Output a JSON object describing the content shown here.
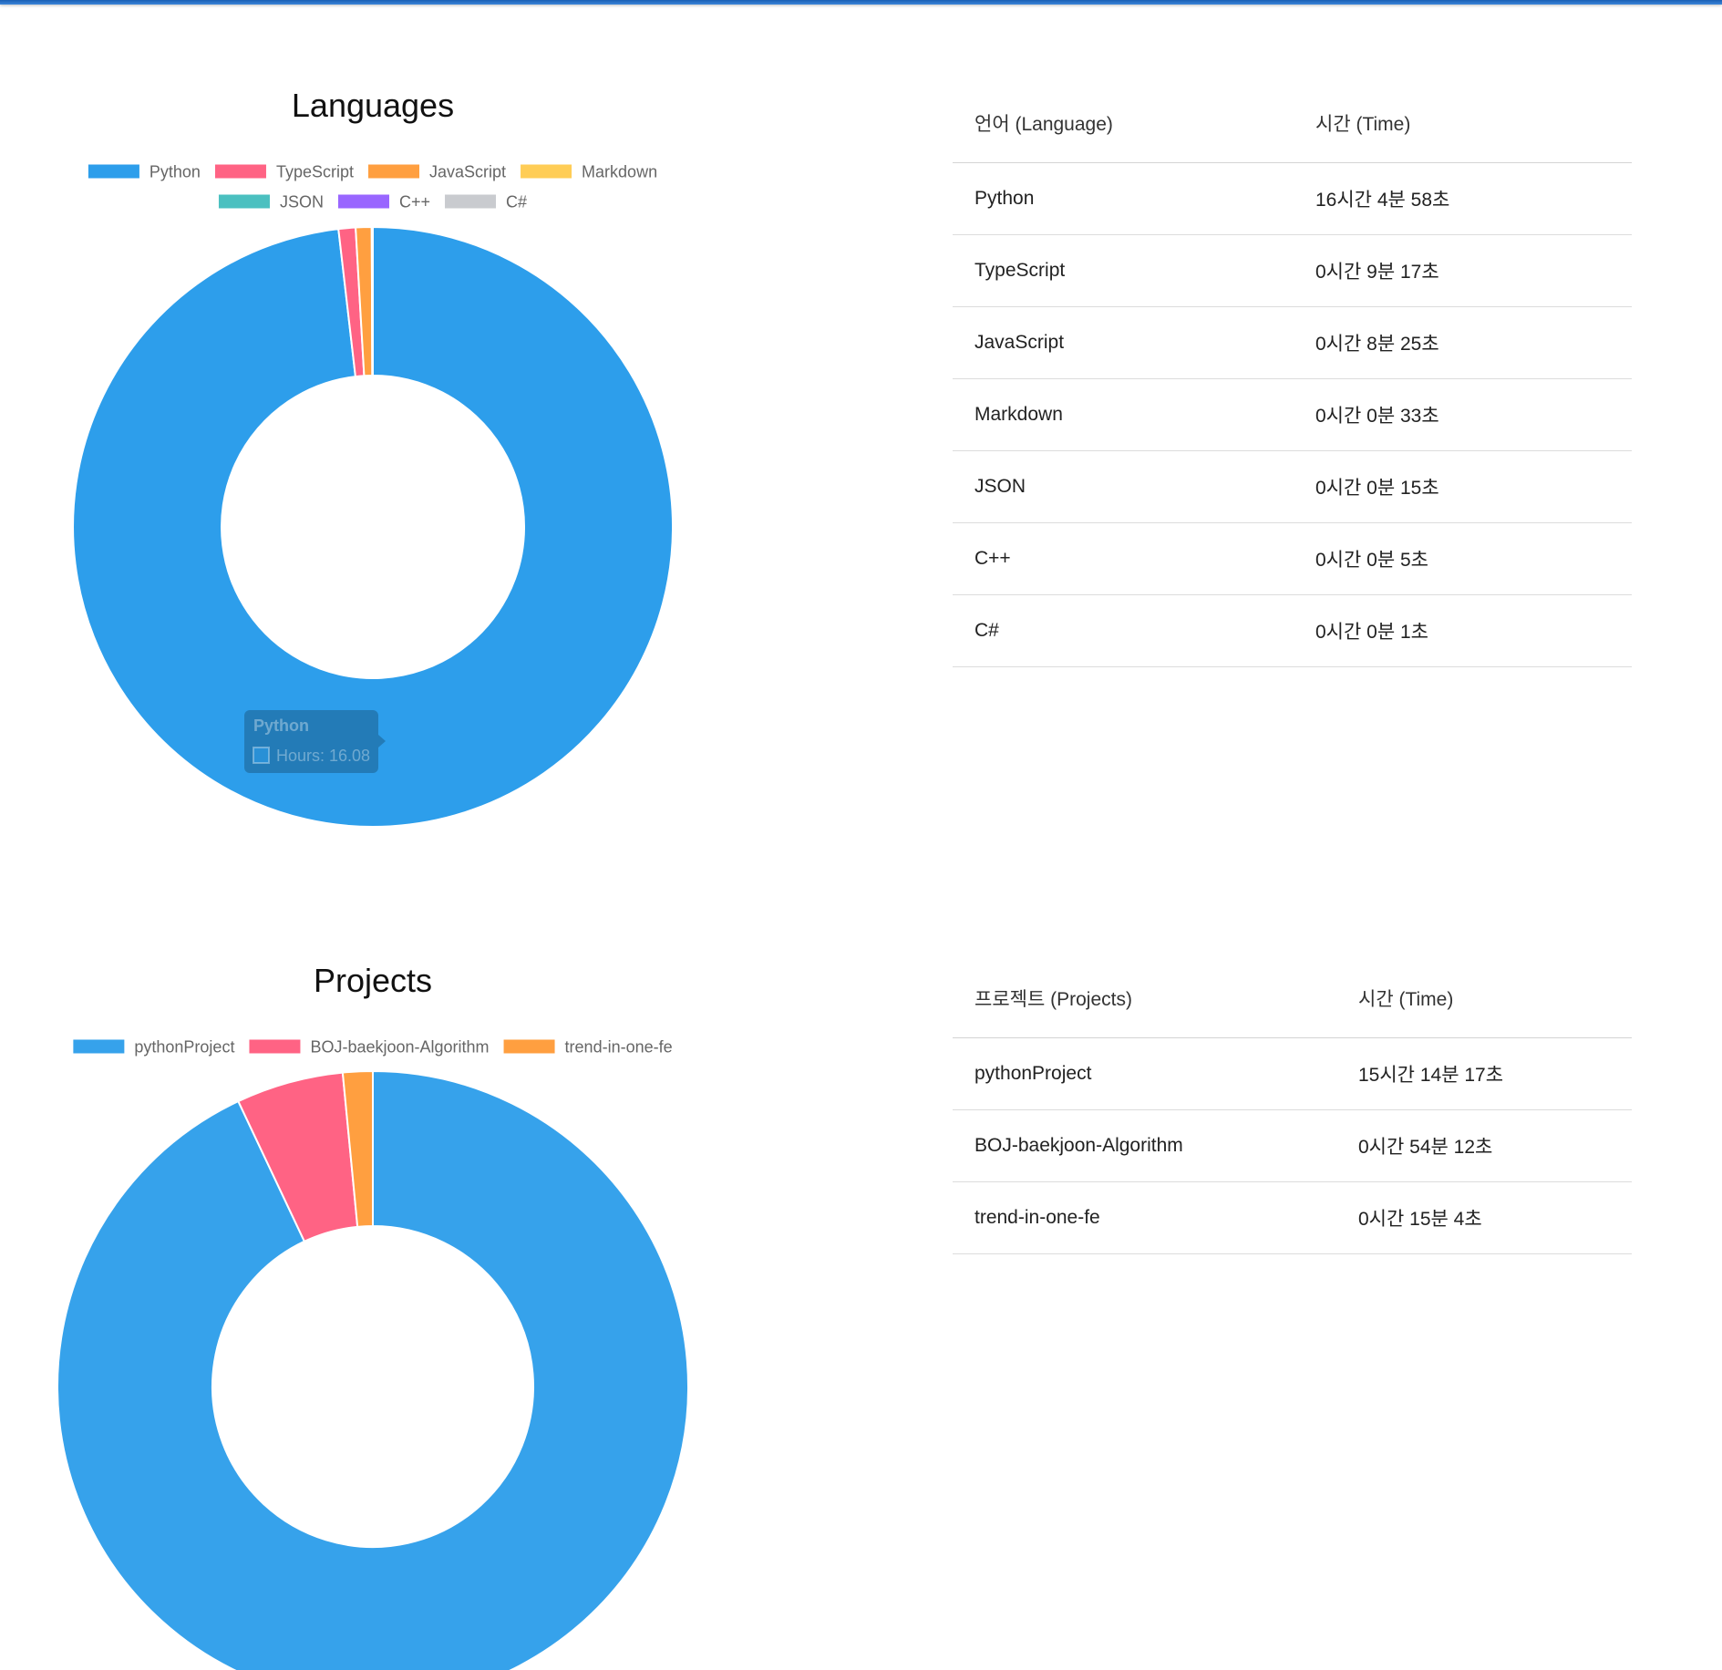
{
  "languages": {
    "chart_data": {
      "type": "doughnut",
      "title": "Languages",
      "categories": [
        "Python",
        "TypeScript",
        "JavaScript",
        "Markdown",
        "JSON",
        "C++",
        "C#"
      ],
      "values": [
        16.08,
        0.15,
        0.14,
        0.01,
        0.0,
        0.0,
        0.0
      ],
      "colors": [
        "#2d9eeb",
        "#ff6384",
        "#ff9f40",
        "#ffcd56",
        "#4bc0c0",
        "#9966ff",
        "#c9cbcf"
      ],
      "legend": "top",
      "tooltip": {
        "title": "Python",
        "label": "Hours: 16.08"
      }
    },
    "table": {
      "headers": [
        "언어 (Language)",
        "시간 (Time)"
      ],
      "rows": [
        [
          "Python",
          "16시간 4분 58초"
        ],
        [
          "TypeScript",
          "0시간 9분 17초"
        ],
        [
          "JavaScript",
          "0시간 8분 25초"
        ],
        [
          "Markdown",
          "0시간 0분 33초"
        ],
        [
          "JSON",
          "0시간 0분 15초"
        ],
        [
          "C++",
          "0시간 0분 5초"
        ],
        [
          "C#",
          "0시간 0분 1초"
        ]
      ]
    }
  },
  "projects": {
    "chart_data": {
      "type": "doughnut",
      "title": "Projects",
      "categories": [
        "pythonProject",
        "BOJ-baekjoon-Algorithm",
        "trend-in-one-fe"
      ],
      "values": [
        15.24,
        0.9,
        0.25
      ],
      "colors": [
        "#36a2eb",
        "#ff6384",
        "#ff9f40"
      ],
      "legend": "top"
    },
    "table": {
      "headers": [
        "프로젝트 (Projects)",
        "시간 (Time)"
      ],
      "rows": [
        [
          "pythonProject",
          "15시간 14분 17초"
        ],
        [
          "BOJ-baekjoon-Algorithm",
          "0시간 54분 12초"
        ],
        [
          "trend-in-one-fe",
          "0시간 15분 4초"
        ]
      ]
    }
  }
}
